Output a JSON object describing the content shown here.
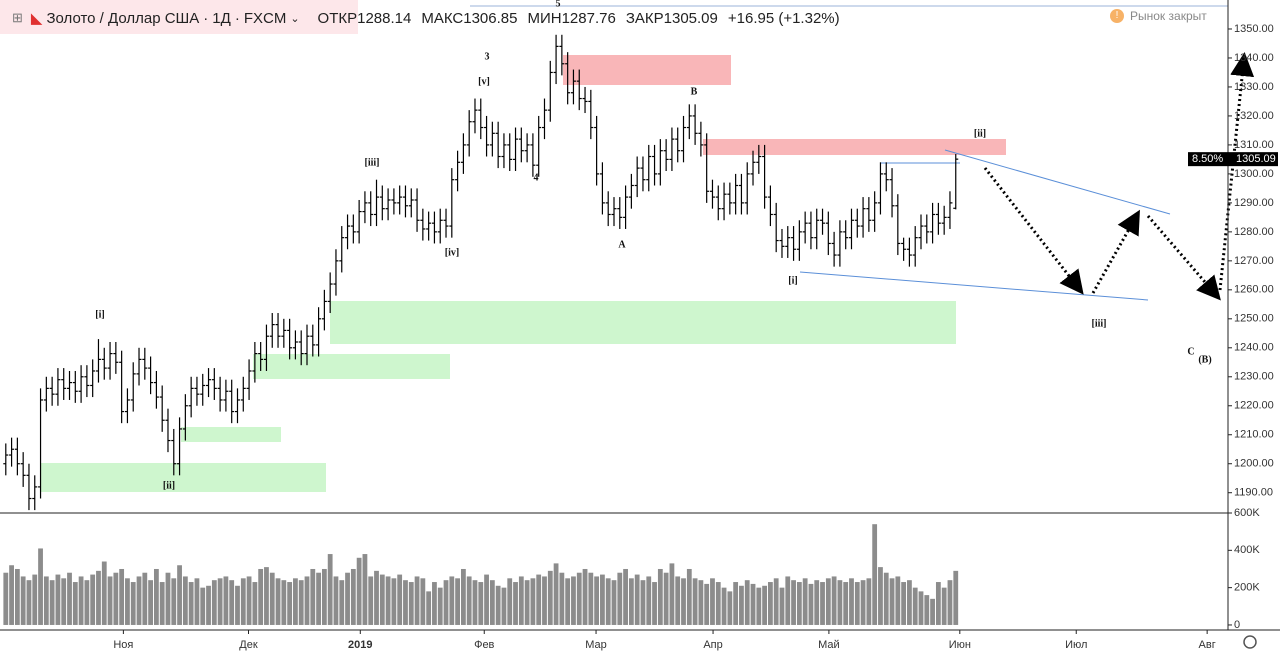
{
  "header": {
    "symbol": "Золото / Доллар США",
    "interval": "1Д",
    "source": "FXCM",
    "open_label": "ОТКР",
    "high_label": "МАКС",
    "low_label": "МИН",
    "close_label": "ЗАКР",
    "change": "+16.95 (+1.32%)",
    "status": "Рынок закрыт"
  },
  "chart_data": [
    {
      "type": "ohlc",
      "color": "#000000",
      "last_price_pct": "8.50%",
      "grid": false,
      "open": [
        1200,
        1203,
        1205,
        1200,
        1196,
        1188,
        1192,
        1222,
        1226,
        1224,
        1229,
        1226,
        1228,
        1225,
        1230,
        1227,
        1232,
        1236,
        1233,
        1238,
        1235,
        1218,
        1222,
        1231,
        1236,
        1233,
        1228,
        1223,
        1215,
        1208,
        1200,
        1212,
        1220,
        1226,
        1224,
        1227,
        1229,
        1226,
        1222,
        1225,
        1218,
        1222,
        1226,
        1232,
        1238,
        1236,
        1244,
        1248,
        1244,
        1246,
        1240,
        1242,
        1238,
        1244,
        1241,
        1250,
        1256,
        1262,
        1270,
        1278,
        1282,
        1280,
        1287,
        1290,
        1286,
        1292,
        1288,
        1291,
        1290,
        1292,
        1289,
        1291,
        1284,
        1281,
        1283,
        1280,
        1284,
        1282,
        1298,
        1304,
        1310,
        1318,
        1322,
        1316,
        1310,
        1314,
        1306,
        1310,
        1305,
        1312,
        1308,
        1310,
        1303,
        1316,
        1322,
        1335,
        1344,
        1338,
        1328,
        1332,
        1326,
        1325,
        1316,
        1300,
        1290,
        1286,
        1288,
        1285,
        1292,
        1296,
        1302,
        1298,
        1306,
        1300,
        1308,
        1305,
        1312,
        1308,
        1316,
        1320,
        1314,
        1310,
        1294,
        1292,
        1288,
        1293,
        1290,
        1296,
        1290,
        1300,
        1304,
        1306,
        1292,
        1286,
        1277,
        1275,
        1278,
        1274,
        1280,
        1283,
        1278,
        1284,
        1283,
        1276,
        1272,
        1280,
        1278,
        1284,
        1282,
        1288,
        1284,
        1290,
        1300,
        1298,
        1289,
        1276,
        1274,
        1272,
        1278,
        1282,
        1280,
        1286,
        1283,
        1285,
        1288.14
      ],
      "high": [
        1207,
        1209,
        1209,
        1204,
        1200,
        1196,
        1226,
        1230,
        1230,
        1233,
        1233,
        1232,
        1232,
        1234,
        1234,
        1236,
        1243,
        1240,
        1242,
        1242,
        1239,
        1226,
        1235,
        1240,
        1240,
        1237,
        1232,
        1227,
        1219,
        1212,
        1216,
        1224,
        1230,
        1230,
        1231,
        1233,
        1233,
        1230,
        1229,
        1229,
        1226,
        1230,
        1236,
        1242,
        1242,
        1248,
        1252,
        1252,
        1250,
        1250,
        1246,
        1246,
        1248,
        1248,
        1254,
        1260,
        1266,
        1274,
        1282,
        1286,
        1286,
        1291,
        1294,
        1294,
        1298,
        1296,
        1295,
        1295,
        1296,
        1296,
        1295,
        1295,
        1288,
        1287,
        1287,
        1288,
        1288,
        1302,
        1308,
        1314,
        1322,
        1326,
        1326,
        1320,
        1318,
        1318,
        1314,
        1314,
        1316,
        1316,
        1314,
        1314,
        1320,
        1326,
        1339,
        1348,
        1348,
        1342,
        1336,
        1336,
        1330,
        1329,
        1320,
        1304,
        1294,
        1292,
        1292,
        1296,
        1300,
        1306,
        1306,
        1310,
        1310,
        1312,
        1312,
        1316,
        1316,
        1320,
        1324,
        1324,
        1318,
        1314,
        1298,
        1296,
        1297,
        1297,
        1300,
        1300,
        1304,
        1308,
        1310,
        1310,
        1296,
        1290,
        1281,
        1282,
        1282,
        1284,
        1287,
        1287,
        1288,
        1288,
        1287,
        1280,
        1284,
        1284,
        1288,
        1288,
        1292,
        1292,
        1294,
        1304,
        1304,
        1302,
        1293,
        1278,
        1278,
        1282,
        1286,
        1286,
        1290,
        1290,
        1289,
        1294,
        1306.85
      ],
      "low": [
        1196,
        1199,
        1196,
        1192,
        1184,
        1184,
        1188,
        1218,
        1220,
        1220,
        1222,
        1222,
        1221,
        1221,
        1223,
        1223,
        1228,
        1229,
        1229,
        1231,
        1214,
        1214,
        1218,
        1227,
        1229,
        1224,
        1219,
        1211,
        1204,
        1196,
        1196,
        1208,
        1216,
        1220,
        1220,
        1223,
        1222,
        1218,
        1218,
        1214,
        1214,
        1218,
        1222,
        1228,
        1232,
        1232,
        1240,
        1240,
        1240,
        1236,
        1236,
        1234,
        1234,
        1237,
        1237,
        1246,
        1252,
        1258,
        1266,
        1274,
        1276,
        1276,
        1283,
        1282,
        1282,
        1284,
        1284,
        1286,
        1286,
        1285,
        1285,
        1280,
        1277,
        1277,
        1276,
        1276,
        1278,
        1278,
        1294,
        1300,
        1306,
        1314,
        1312,
        1306,
        1306,
        1302,
        1302,
        1301,
        1301,
        1304,
        1304,
        1299,
        1299,
        1312,
        1318,
        1331,
        1334,
        1324,
        1324,
        1322,
        1321,
        1312,
        1296,
        1286,
        1282,
        1282,
        1281,
        1281,
        1288,
        1292,
        1294,
        1294,
        1296,
        1296,
        1301,
        1301,
        1304,
        1304,
        1312,
        1310,
        1306,
        1290,
        1288,
        1284,
        1284,
        1286,
        1286,
        1286,
        1286,
        1296,
        1300,
        1288,
        1282,
        1273,
        1271,
        1271,
        1270,
        1270,
        1276,
        1274,
        1274,
        1279,
        1272,
        1268,
        1268,
        1274,
        1274,
        1278,
        1278,
        1280,
        1280,
        1286,
        1294,
        1285,
        1272,
        1270,
        1268,
        1268,
        1274,
        1276,
        1276,
        1279,
        1279,
        1281,
        1287.76
      ],
      "close": [
        1203,
        1205,
        1200,
        1196,
        1188,
        1192,
        1222,
        1226,
        1224,
        1229,
        1226,
        1228,
        1225,
        1230,
        1227,
        1232,
        1236,
        1233,
        1238,
        1235,
        1218,
        1222,
        1231,
        1236,
        1233,
        1228,
        1223,
        1215,
        1208,
        1200,
        1212,
        1220,
        1226,
        1224,
        1227,
        1229,
        1226,
        1222,
        1225,
        1218,
        1222,
        1226,
        1232,
        1238,
        1236,
        1244,
        1248,
        1244,
        1246,
        1240,
        1242,
        1238,
        1244,
        1241,
        1250,
        1256,
        1262,
        1270,
        1278,
        1282,
        1280,
        1287,
        1290,
        1286,
        1292,
        1288,
        1291,
        1290,
        1292,
        1289,
        1291,
        1284,
        1281,
        1283,
        1280,
        1284,
        1282,
        1298,
        1304,
        1310,
        1318,
        1322,
        1316,
        1310,
        1314,
        1306,
        1310,
        1305,
        1312,
        1308,
        1310,
        1303,
        1316,
        1322,
        1335,
        1344,
        1338,
        1328,
        1332,
        1326,
        1325,
        1316,
        1300,
        1290,
        1286,
        1288,
        1285,
        1292,
        1296,
        1302,
        1298,
        1306,
        1300,
        1308,
        1305,
        1312,
        1308,
        1316,
        1320,
        1314,
        1310,
        1294,
        1292,
        1288,
        1293,
        1290,
        1296,
        1290,
        1300,
        1304,
        1306,
        1292,
        1286,
        1277,
        1275,
        1278,
        1274,
        1280,
        1283,
        1278,
        1284,
        1283,
        1276,
        1272,
        1280,
        1278,
        1284,
        1282,
        1288,
        1284,
        1290,
        1300,
        1298,
        1289,
        1276,
        1274,
        1272,
        1278,
        1282,
        1280,
        1286,
        1283,
        1285,
        1290,
        1305.09
      ],
      "xlim": [
        -1,
        211
      ],
      "xticks": [
        {
          "value": 20.3,
          "label": "Ноя"
        },
        {
          "value": 41.9,
          "label": "Дек"
        },
        {
          "value": 61.2,
          "label": "2019"
        },
        {
          "value": 82.6,
          "label": "Фев"
        },
        {
          "value": 101.9,
          "label": "Мар"
        },
        {
          "value": 122.1,
          "label": "Апр"
        },
        {
          "value": 142.1,
          "label": "Май"
        },
        {
          "value": 164.7,
          "label": "Июн"
        },
        {
          "value": 184.8,
          "label": "Июл"
        },
        {
          "value": 207.4,
          "label": "Авг"
        }
      ],
      "ylim": [
        1183,
        1360
      ],
      "yticks": [
        {
          "value": 1190,
          "label": "1190.00"
        },
        {
          "value": 1200,
          "label": "1200.00"
        },
        {
          "value": 1210,
          "label": "1210.00"
        },
        {
          "value": 1220,
          "label": "1220.00"
        },
        {
          "value": 1230,
          "label": "1230.00"
        },
        {
          "value": 1240,
          "label": "1240.00"
        },
        {
          "value": 1250,
          "label": "1250.00"
        },
        {
          "value": 1260,
          "label": "1260.00"
        },
        {
          "value": 1270,
          "label": "1270.00"
        },
        {
          "value": 1280,
          "label": "1280.00"
        },
        {
          "value": 1290,
          "label": "1290.00"
        },
        {
          "value": 1300,
          "label": "1300.00"
        },
        {
          "value": 1310,
          "label": "1310.00"
        },
        {
          "value": 1320,
          "label": "1320.00"
        },
        {
          "value": 1330,
          "label": "1330.00"
        },
        {
          "value": 1340,
          "label": "1340.00"
        },
        {
          "value": 1350,
          "label": "1350.00"
        }
      ],
      "annotations": [
        "3",
        "5",
        "[v]",
        "[iii]",
        "[iv]",
        "4",
        "A",
        "B",
        "[ii]",
        "[i]",
        "[iii]",
        "C",
        "(B)",
        "[i]",
        "[ii]"
      ]
    },
    {
      "type": "bar",
      "color": "#8c8c8c",
      "xlim": [
        -1,
        211
      ],
      "ylim": [
        -27,
        600
      ],
      "yticks": [
        0,
        {
          "value": 200,
          "label": "200K"
        },
        {
          "value": 400,
          "label": "400K"
        },
        {
          "value": 600,
          "label": "600K"
        }
      ],
      "values": [
        280,
        320,
        300,
        260,
        240,
        270,
        410,
        260,
        240,
        270,
        250,
        280,
        230,
        260,
        240,
        270,
        290,
        340,
        260,
        280,
        300,
        250,
        230,
        260,
        280,
        240,
        300,
        230,
        280,
        250,
        320,
        260,
        230,
        250,
        200,
        210,
        240,
        250,
        260,
        240,
        210,
        250,
        260,
        230,
        300,
        310,
        280,
        250,
        240,
        230,
        250,
        240,
        260,
        300,
        280,
        300,
        380,
        260,
        240,
        280,
        300,
        360,
        380,
        260,
        290,
        270,
        260,
        250,
        270,
        240,
        230,
        260,
        250,
        180,
        230,
        200,
        240,
        260,
        250,
        300,
        260,
        240,
        230,
        270,
        240,
        210,
        200,
        250,
        230,
        260,
        240,
        250,
        270,
        260,
        290,
        330,
        280,
        250,
        260,
        280,
        300,
        280,
        260,
        270,
        250,
        240,
        280,
        300,
        250,
        270,
        240,
        260,
        230,
        300,
        280,
        330,
        260,
        250,
        300,
        250,
        240,
        220,
        250,
        230,
        200,
        180,
        230,
        210,
        240,
        220,
        200,
        210,
        230,
        250,
        200,
        260,
        240,
        230,
        250,
        220,
        240,
        230,
        250,
        260,
        240,
        230,
        250,
        230,
        240,
        250,
        540,
        310,
        280,
        250,
        260,
        230,
        240,
        200,
        180,
        160,
        140,
        230,
        200,
        240,
        290
      ]
    }
  ]
}
